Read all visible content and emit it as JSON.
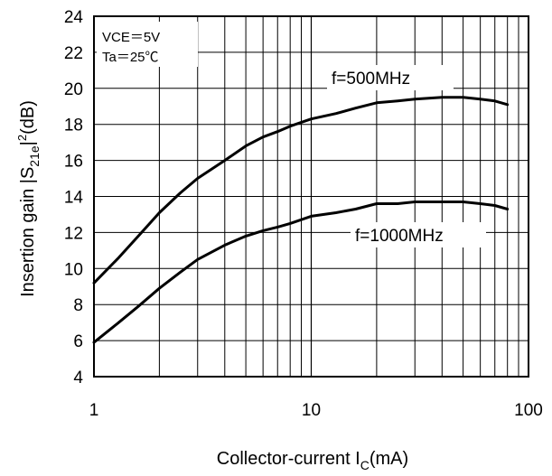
{
  "chart_data": {
    "type": "line",
    "x_scale": "log",
    "grid": true,
    "xlim": [
      1,
      100
    ],
    "ylim": [
      4,
      24
    ],
    "x_ticks": [
      "1",
      "10",
      "100"
    ],
    "y_ticks": [
      "4",
      "6",
      "8",
      "10",
      "12",
      "14",
      "16",
      "18",
      "20",
      "22",
      "24"
    ],
    "xlabel": {
      "main": "Collector-current I",
      "sub": "C",
      "unit": "(mA)"
    },
    "ylabel": {
      "a": "Insertion gain |S",
      "sub": "21e",
      "b": "|",
      "sup": "2",
      "c": "(dB)"
    },
    "conditions": [
      "VCE＝5V",
      "Ta＝25℃"
    ],
    "series": [
      {
        "name": "f=500MHz",
        "x": [
          1,
          1.3,
          1.6,
          2,
          2.5,
          3,
          4,
          5,
          6,
          7,
          8,
          10,
          13,
          16,
          20,
          25,
          30,
          40,
          50,
          60,
          70,
          80
        ],
        "y": [
          9.2,
          10.6,
          11.8,
          13.1,
          14.2,
          15.0,
          16.0,
          16.8,
          17.3,
          17.6,
          17.9,
          18.3,
          18.6,
          18.9,
          19.2,
          19.3,
          19.4,
          19.5,
          19.5,
          19.4,
          19.3,
          19.1
        ]
      },
      {
        "name": "f=1000MHz",
        "x": [
          1,
          1.3,
          1.6,
          2,
          2.5,
          3,
          4,
          5,
          6,
          7,
          8,
          10,
          13,
          16,
          20,
          25,
          30,
          40,
          50,
          60,
          70,
          80
        ],
        "y": [
          5.9,
          7.0,
          7.9,
          8.9,
          9.8,
          10.5,
          11.3,
          11.8,
          12.1,
          12.3,
          12.5,
          12.9,
          13.1,
          13.3,
          13.6,
          13.6,
          13.7,
          13.7,
          13.7,
          13.6,
          13.5,
          13.3
        ]
      }
    ]
  }
}
